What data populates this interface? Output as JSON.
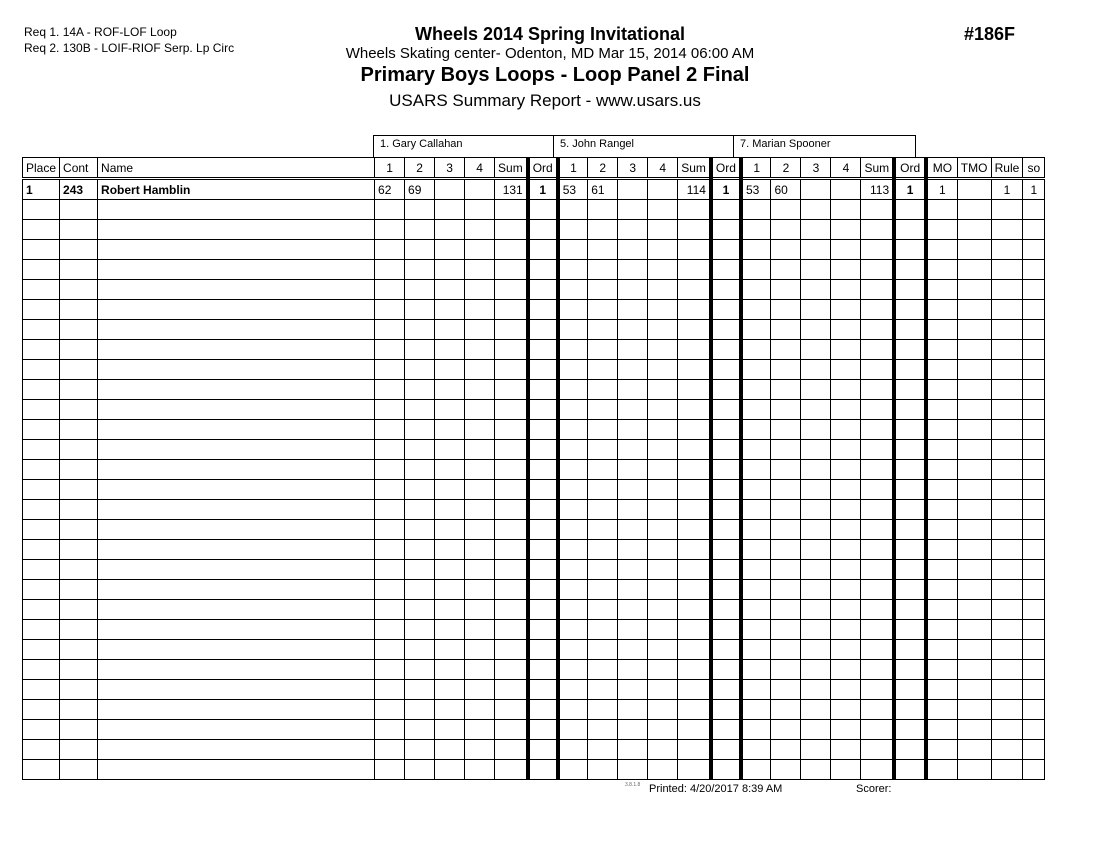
{
  "requirements": [
    "Req  1.  14A - ROF-LOF Loop",
    "Req  2.  130B - LOIF-RIOF Serp. Lp Circ"
  ],
  "header": {
    "title": "Wheels 2014 Spring Invitational",
    "subtitle": "Wheels Skating center- Odenton, MD  Mar 15, 2014  06:00 AM",
    "event": "Primary Boys Loops - Loop Panel 2 Final",
    "report": "USARS Summary Report - www.usars.us",
    "event_number": "#186F"
  },
  "judges": [
    "1.  Gary Callahan",
    "5.  John Rangel",
    "7.  Marian Spooner"
  ],
  "columns": [
    "Place",
    "Cont",
    "Name",
    "1",
    "2",
    "3",
    "4",
    "Sum",
    "Ord",
    "1",
    "2",
    "3",
    "4",
    "Sum",
    "Ord",
    "1",
    "2",
    "3",
    "4",
    "Sum",
    "Ord",
    "MO",
    "TMO",
    "Rule",
    "so"
  ],
  "rows": [
    [
      "1",
      "243",
      "Robert Hamblin",
      "62",
      "69",
      "",
      "",
      "131",
      "1",
      "53",
      "61",
      "",
      "",
      "114",
      "1",
      "53",
      "60",
      "",
      "",
      "113",
      "1",
      "1",
      "",
      "1",
      "1"
    ]
  ],
  "footer": {
    "version": "3.8.1.8",
    "printed": "Printed:  4/20/2017  8:39 AM",
    "scorer": "Scorer:"
  }
}
